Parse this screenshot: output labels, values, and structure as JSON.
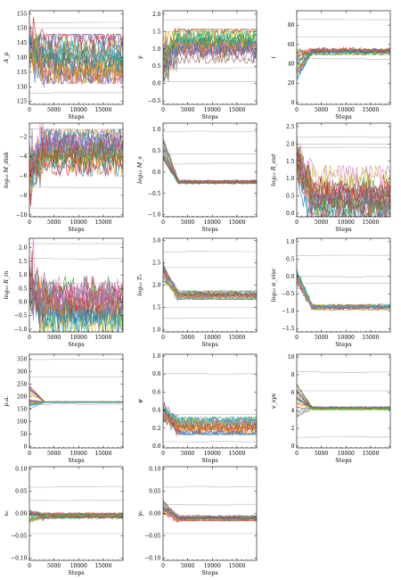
{
  "chart_data": [
    {
      "type": "line",
      "ylabel": "A_p",
      "xlabel": "Steps",
      "xlim": [
        0,
        19000
      ],
      "ylim": [
        124,
        156
      ],
      "yticks": [
        125,
        130,
        135,
        140,
        145,
        150,
        155
      ],
      "xticks": [
        0,
        5000,
        10000,
        15000
      ],
      "band": [
        133,
        146
      ],
      "center": 140,
      "start": [
        140,
        148
      ],
      "gray_refs": [
        152,
        150,
        128
      ]
    },
    {
      "type": "line",
      "ylabel": "γ",
      "xlabel": "Steps",
      "xlim": [
        0,
        19000
      ],
      "ylim": [
        -0.6,
        2.1
      ],
      "yticks": [
        -0.5,
        0.0,
        0.5,
        1.0,
        1.5,
        2.0
      ],
      "xticks": [
        0,
        5000,
        10000,
        15000
      ],
      "band": [
        0.7,
        1.45
      ],
      "center": 1.15,
      "start": [
        0.1,
        1.3
      ],
      "gray_refs": [
        1.85,
        1.5,
        0.45,
        0.05
      ]
    },
    {
      "type": "line",
      "ylabel": "i",
      "xlabel": "Steps",
      "xlim": [
        0,
        19000
      ],
      "ylim": [
        -2,
        95
      ],
      "yticks": [
        0,
        20,
        40,
        60,
        80
      ],
      "xticks": [
        0,
        5000,
        10000,
        15000
      ],
      "band": [
        50,
        56
      ],
      "center": 53,
      "start": [
        20,
        55
      ],
      "gray_refs": [
        86,
        68,
        45
      ]
    },
    {
      "type": "line",
      "ylabel": "log10 M_disk",
      "xlabel": "Steps",
      "xlim": [
        0,
        19000
      ],
      "ylim": [
        -10.2,
        -0.6
      ],
      "yticks": [
        -10,
        -8,
        -6,
        -4,
        -2
      ],
      "xticks": [
        0,
        5000,
        10000,
        15000
      ],
      "band": [
        -5.5,
        -1.8
      ],
      "center": -3.5,
      "start": [
        -7,
        -4
      ],
      "gray_refs": [
        -1.2,
        -9.3,
        -7.2
      ]
    },
    {
      "type": "line",
      "ylabel": "log10 M_s",
      "xlabel": "Steps",
      "xlim": [
        0,
        19000
      ],
      "ylim": [
        -1.05,
        1.15
      ],
      "yticks": [
        -1.0,
        -0.5,
        0.0,
        0.5,
        1.0
      ],
      "xticks": [
        0,
        5000,
        10000,
        15000
      ],
      "band": [
        -0.27,
        -0.19
      ],
      "center": -0.23,
      "start": [
        0.3,
        0.8
      ],
      "gray_refs": [
        0.95,
        0.42,
        0.2
      ]
    },
    {
      "type": "line",
      "ylabel": "log10 R_out",
      "xlabel": "Steps",
      "xlim": [
        0,
        19000
      ],
      "ylim": [
        -0.1,
        2.6
      ],
      "yticks": [
        0.0,
        0.5,
        1.0,
        1.5,
        2.0,
        2.5
      ],
      "xticks": [
        0,
        5000,
        10000,
        15000
      ],
      "band": [
        0.05,
        1.2
      ],
      "center": 0.5,
      "start": [
        1.2,
        1.8
      ],
      "gray_refs": [
        2.2,
        2.0,
        1.9
      ]
    },
    {
      "type": "line",
      "ylabel": "log10 R_in",
      "xlabel": "Steps",
      "xlim": [
        0,
        19000
      ],
      "ylim": [
        -1.1,
        2.35
      ],
      "yticks": [
        -1.0,
        -0.5,
        0.0,
        0.5,
        1.0,
        1.5,
        2.0
      ],
      "xticks": [
        0,
        5000,
        10000,
        15000
      ],
      "band": [
        -1.0,
        0.7
      ],
      "center": -0.2,
      "start": [
        0.3,
        1.0
      ],
      "gray_refs": [
        1.6,
        2.15,
        0.7
      ]
    },
    {
      "type": "line",
      "ylabel": "log10 T_0",
      "xlabel": "Steps",
      "xlim": [
        0,
        19000
      ],
      "ylim": [
        0.95,
        3.05
      ],
      "yticks": [
        1.0,
        1.5,
        2.0,
        2.5,
        3.0
      ],
      "xticks": [
        0,
        5000,
        10000,
        15000
      ],
      "band": [
        1.7,
        1.85
      ],
      "center": 1.78,
      "start": [
        2.1,
        2.5
      ],
      "gray_refs": [
        2.75,
        2.4,
        1.25,
        1.5
      ]
    },
    {
      "type": "line",
      "ylabel": "log10 α_visc",
      "xlabel": "Steps",
      "xlim": [
        0,
        19000
      ],
      "ylim": [
        -1.6,
        1.1
      ],
      "yticks": [
        -1.5,
        -1.0,
        -0.5,
        0.0,
        0.5,
        1.0
      ],
      "xticks": [
        0,
        5000,
        10000,
        15000
      ],
      "band": [
        -0.95,
        -0.82
      ],
      "center": -0.88,
      "start": [
        -0.2,
        0.2
      ],
      "gray_refs": [
        0.6,
        -0.2,
        0.0
      ]
    },
    {
      "type": "line",
      "ylabel": "p.a.",
      "xlabel": "Steps",
      "xlim": [
        0,
        19000
      ],
      "ylim": [
        -5,
        370
      ],
      "yticks": [
        0,
        50,
        100,
        150,
        200,
        250,
        300,
        350
      ],
      "xticks": [
        0,
        5000,
        10000,
        15000
      ],
      "band": [
        176,
        180
      ],
      "center": 178,
      "start": [
        150,
        250
      ],
      "gray_refs": [
        350,
        280,
        170
      ]
    },
    {
      "type": "line",
      "ylabel": "ψ",
      "xlabel": "Steps",
      "xlim": [
        0,
        19000
      ],
      "ylim": [
        -0.02,
        1.02
      ],
      "yticks": [
        0.0,
        0.2,
        0.4,
        0.6,
        0.8,
        1.0
      ],
      "xticks": [
        0,
        5000,
        10000,
        15000
      ],
      "band": [
        0.15,
        0.3
      ],
      "center": 0.22,
      "start": [
        0.3,
        0.45
      ],
      "gray_refs": [
        0.8,
        0.35,
        0.05
      ]
    },
    {
      "type": "line",
      "ylabel": "v_sys",
      "xlabel": "Steps",
      "xlim": [
        0,
        19000
      ],
      "ylim": [
        -0.2,
        10.3
      ],
      "yticks": [
        0,
        2,
        4,
        6,
        8,
        10
      ],
      "xticks": [
        0,
        5000,
        10000,
        15000
      ],
      "band": [
        4.1,
        4.4
      ],
      "center": 4.25,
      "start": [
        3,
        7
      ],
      "gray_refs": [
        8.3,
        6.2,
        1.0
      ]
    },
    {
      "type": "line",
      "ylabel": "x_0",
      "xlabel": "Steps",
      "xlim": [
        0,
        19000
      ],
      "ylim": [
        -0.105,
        0.105
      ],
      "yticks": [
        -0.1,
        -0.05,
        0.0,
        0.05,
        0.1
      ],
      "xticks": [
        0,
        5000,
        10000,
        15000
      ],
      "band": [
        -0.01,
        0.0
      ],
      "center": -0.005,
      "start": [
        -0.02,
        0.01
      ],
      "gray_refs": [
        0.03,
        -0.045,
        0.06
      ]
    },
    {
      "type": "line",
      "ylabel": "y_0",
      "xlabel": "Steps",
      "xlim": [
        0,
        19000
      ],
      "ylim": [
        -0.105,
        0.105
      ],
      "yticks": [
        -0.1,
        -0.05,
        0.0,
        0.05,
        0.1
      ],
      "xticks": [
        0,
        5000,
        10000,
        15000
      ],
      "band": [
        -0.015,
        -0.005
      ],
      "center": -0.01,
      "start": [
        0.0,
        0.03
      ],
      "gray_refs": [
        0.06,
        -0.045,
        0.02
      ]
    }
  ],
  "ylabels_display": [
    "A_p",
    "γ",
    "i",
    "log₁₀ M_disk",
    "log₁₀ M_s",
    "log₁₀ R_out",
    "log₁₀ R_in",
    "log₁₀ T₀",
    "log₁₀ α_visc",
    "p.a.",
    "ψ",
    "v_sys",
    "x₀",
    "y₀"
  ],
  "colors": [
    "#1f77b4",
    "#ff7f0e",
    "#2ca02c",
    "#d62728",
    "#9467bd",
    "#8c564b",
    "#e377c2",
    "#7f7f7f",
    "#bcbd22",
    "#17becf"
  ]
}
